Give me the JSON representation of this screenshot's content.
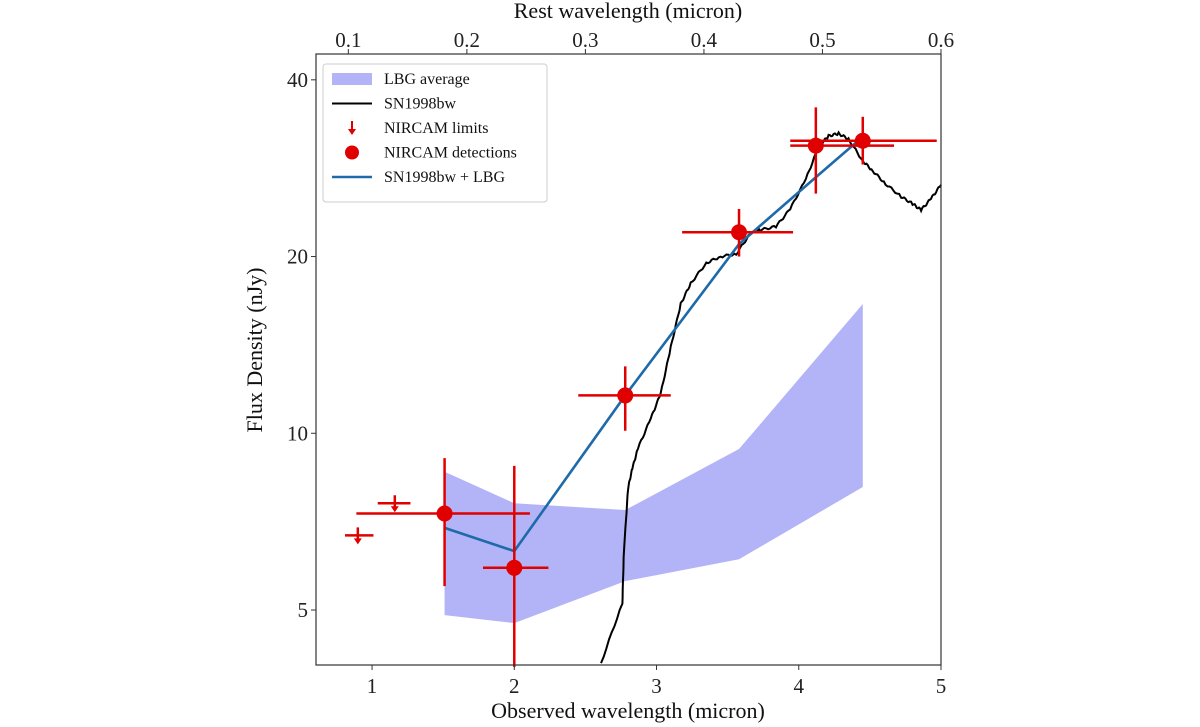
{
  "chart_data": {
    "type": "scatter",
    "xlabel": "Observed wavelength (micron)",
    "x2label": "Rest wavelength (micron)",
    "ylabel": "Flux Density (nJy)",
    "xlim": [
      0.606,
      5.0
    ],
    "ylim": [
      4.03,
      47.5
    ],
    "yscale": "log",
    "grid": false,
    "legend_position": "top-left",
    "xticks": [
      1,
      2,
      3,
      4,
      5
    ],
    "x2ticks": [
      "0.1",
      "0.2",
      "0.3",
      "0.4",
      "0.5",
      "0.6"
    ],
    "yticks": [
      5,
      10,
      20,
      40
    ],
    "colors": {
      "lbg": "#b3b3f7",
      "sn": "#000000",
      "nircam": "#e00000",
      "model": "#1f6aa8"
    },
    "legend": [
      {
        "label": "LBG average",
        "kind": "band"
      },
      {
        "label": "SN1998bw",
        "kind": "line"
      },
      {
        "label": "NIRCAM limits",
        "kind": "uplim"
      },
      {
        "label": "NIRCAM detections",
        "kind": "point"
      },
      {
        "label": "SN1998bw + LBG",
        "kind": "model"
      }
    ],
    "lbg_average": {
      "x": [
        1.51,
        2.0,
        2.78,
        3.58,
        4.45
      ],
      "upper": [
        8.6,
        7.6,
        7.4,
        9.4,
        16.6
      ],
      "lower": [
        4.9,
        4.75,
        5.6,
        6.1,
        8.1
      ]
    },
    "sn1998bw": {
      "x": [
        2.61,
        2.76,
        2.77,
        2.8,
        2.83,
        2.87,
        2.96,
        3.03,
        3.1,
        3.17,
        3.24,
        3.35,
        3.45,
        3.56,
        3.66,
        3.73,
        3.84,
        3.94,
        4.05,
        4.14,
        4.21,
        4.28,
        4.35,
        4.45,
        4.52,
        4.61,
        4.72,
        4.8,
        4.86,
        4.93,
        5.0
      ],
      "y": [
        4.06,
        5.14,
        6.25,
        8.06,
        8.72,
        9.43,
        10.6,
        11.7,
        14.0,
        16.6,
        18.0,
        19.5,
        20.0,
        20.2,
        21.9,
        22.2,
        22.5,
        24.1,
        27.1,
        30.8,
        32.1,
        32.4,
        31.7,
        29.1,
        28.0,
        26.6,
        25.3,
        24.6,
        24.0,
        25.1,
        26.5
      ]
    },
    "nircam_limits": [
      {
        "x": 0.9,
        "y": 6.7,
        "xmin": 0.81,
        "xmax": 1.01
      },
      {
        "x": 1.16,
        "y": 7.6,
        "xmin": 1.04,
        "xmax": 1.27
      }
    ],
    "nircam_detections": [
      {
        "x": 1.51,
        "y": 7.3,
        "xmin": 0.89,
        "xmax": 2.11,
        "ymin": 5.49,
        "ymax": 9.07
      },
      {
        "x": 2.0,
        "y": 5.9,
        "xmin": 1.78,
        "xmax": 2.24,
        "ymin": 4.0,
        "ymax": 8.8
      },
      {
        "x": 2.78,
        "y": 11.6,
        "xmin": 2.45,
        "xmax": 3.1,
        "ymin": 10.1,
        "ymax": 13.0
      },
      {
        "x": 3.58,
        "y": 22.0,
        "xmin": 3.18,
        "xmax": 3.96,
        "ymin": 20.0,
        "ymax": 24.1
      },
      {
        "x": 4.12,
        "y": 30.9,
        "xmin": 3.94,
        "xmax": 4.67,
        "ymin": 25.6,
        "ymax": 35.9
      },
      {
        "x": 4.45,
        "y": 31.5,
        "xmin": 3.94,
        "xmax": 4.97,
        "ymin": 28.7,
        "ymax": 34.6
      }
    ],
    "model": {
      "x": [
        1.51,
        2.0,
        2.78,
        3.58,
        4.12,
        4.45
      ],
      "y": [
        6.9,
        6.3,
        11.6,
        21.0,
        27.3,
        32.0
      ]
    }
  }
}
